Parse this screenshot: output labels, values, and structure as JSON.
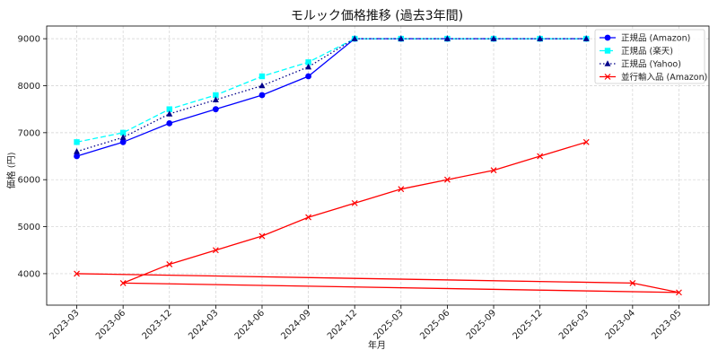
{
  "chart_data": {
    "type": "line",
    "title": "モルック価格推移 (過去3年間)",
    "xlabel": "年月",
    "ylabel": "価格 (円)",
    "categories": [
      "2023-03",
      "2023-06",
      "2023-12",
      "2024-03",
      "2024-06",
      "2024-09",
      "2024-12",
      "2025-03",
      "2025-06",
      "2025-09",
      "2025-12",
      "2026-03",
      "2023-04",
      "2023-05"
    ],
    "ylim": [
      3330,
      9270
    ],
    "yticks": [
      4000,
      5000,
      6000,
      7000,
      8000,
      9000
    ],
    "grid": true,
    "legend_position": "top-right",
    "series": [
      {
        "name": "正規品 (Amazon)",
        "color": "#0000ff",
        "linestyle": "solid",
        "marker": "circle",
        "x": [
          "2023-03",
          "2023-06",
          "2023-12",
          "2024-03",
          "2024-06",
          "2024-09",
          "2024-12",
          "2025-03",
          "2025-06",
          "2025-09",
          "2025-12",
          "2026-03"
        ],
        "values": [
          6500,
          6800,
          7200,
          7500,
          7800,
          8200,
          9000,
          9000,
          9000,
          9000,
          9000,
          9000
        ]
      },
      {
        "name": "正規品 (楽天)",
        "color": "#00ffff",
        "linestyle": "dashed",
        "marker": "square",
        "x": [
          "2023-03",
          "2023-06",
          "2023-12",
          "2024-03",
          "2024-06",
          "2024-09",
          "2024-12",
          "2025-03",
          "2025-06",
          "2025-09",
          "2025-12",
          "2026-03"
        ],
        "values": [
          6800,
          7000,
          7500,
          7800,
          8200,
          8500,
          9000,
          9000,
          9000,
          9000,
          9000,
          9000
        ]
      },
      {
        "name": "正規品 (Yahoo)",
        "color": "#00008b",
        "linestyle": "dotted",
        "marker": "triangle",
        "x": [
          "2023-03",
          "2023-06",
          "2023-12",
          "2024-03",
          "2024-06",
          "2024-09",
          "2024-12",
          "2025-03",
          "2025-06",
          "2025-09",
          "2025-12",
          "2026-03"
        ],
        "values": [
          6600,
          6900,
          7400,
          7700,
          8000,
          8400,
          9000,
          9000,
          9000,
          9000,
          9000,
          9000
        ]
      },
      {
        "name": "並行輸入品 (Amazon)",
        "color": "#ff0000",
        "linestyle": "solid",
        "marker": "x",
        "x": [
          "2023-03",
          "2023-04",
          "2023-05",
          "2023-06",
          "2023-12",
          "2024-03",
          "2024-06",
          "2024-09",
          "2024-12",
          "2025-03",
          "2025-06",
          "2025-09",
          "2025-12",
          "2026-03"
        ],
        "values": [
          4000,
          3800,
          3600,
          3800,
          4200,
          4500,
          4800,
          5200,
          5500,
          5800,
          6000,
          6200,
          6500,
          6800
        ]
      }
    ]
  }
}
